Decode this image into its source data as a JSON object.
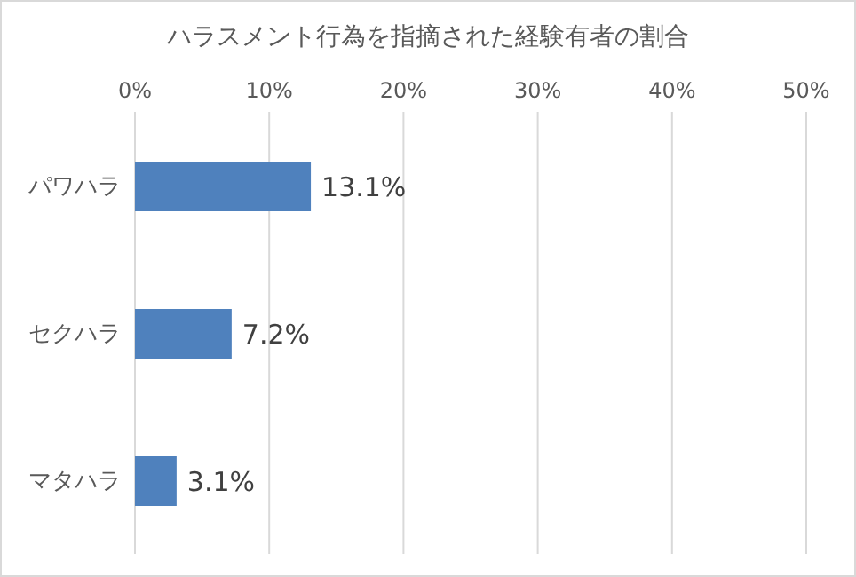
{
  "chart_data": {
    "type": "bar",
    "orientation": "horizontal",
    "title": "ハラスメント行為を指摘された経験有者の割合",
    "categories": [
      "パワハラ",
      "セクハラ",
      "マタハラ"
    ],
    "values": [
      13.1,
      7.2,
      3.1
    ],
    "value_labels": [
      "13.1%",
      "7.2%",
      "3.1%"
    ],
    "color": "#4f81bd",
    "xlim": [
      0,
      50
    ],
    "xticks": [
      {
        "value": 0,
        "label": "0%"
      },
      {
        "value": 10,
        "label": "10%"
      },
      {
        "value": 20,
        "label": "20%"
      },
      {
        "value": 30,
        "label": "30%"
      },
      {
        "value": 40,
        "label": "40%"
      },
      {
        "value": 50,
        "label": "50%"
      }
    ],
    "grid": "x"
  }
}
